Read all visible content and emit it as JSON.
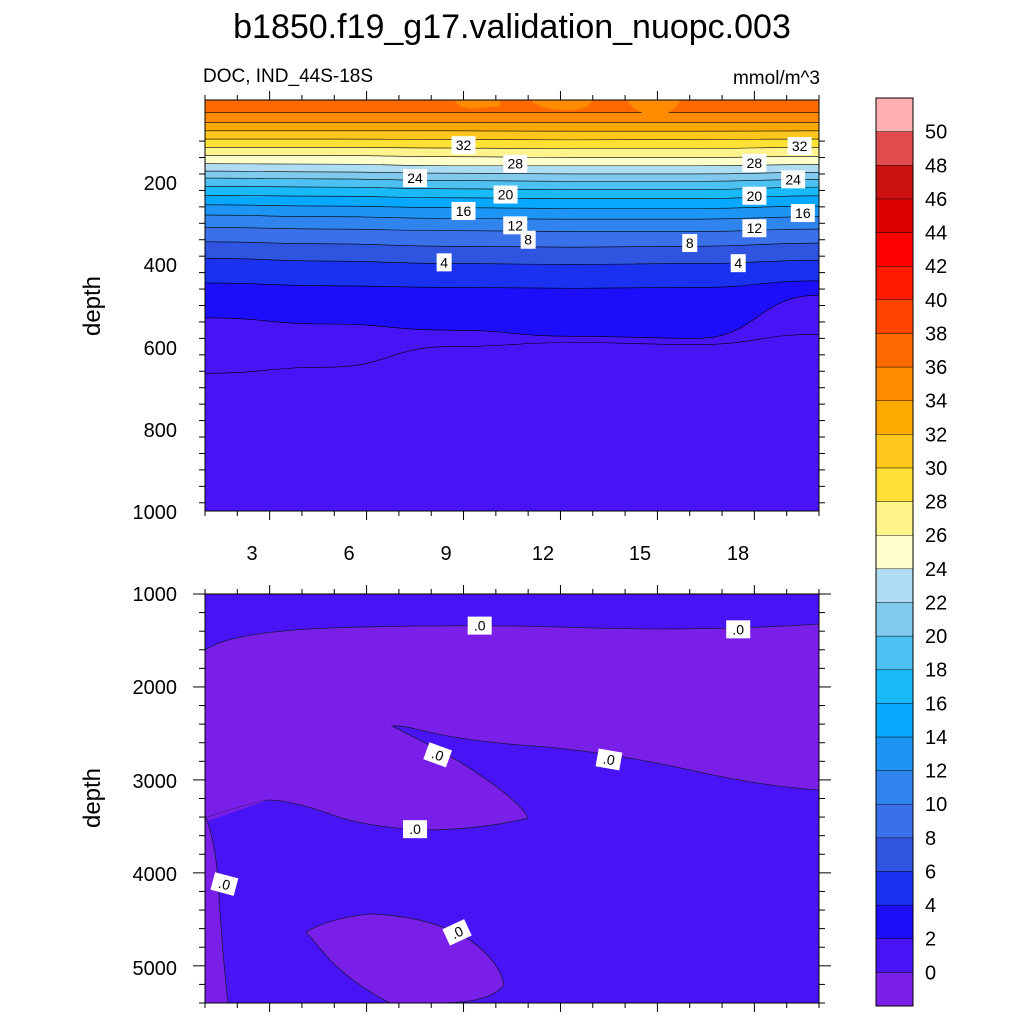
{
  "title": "b1850.f19_g17.validation_nuopc.003",
  "chart_data": [
    {
      "type": "contour",
      "panel": "upper",
      "left_label": "DOC, IND_44S-18S",
      "right_label": "mmol/m^3",
      "xlabel": "",
      "ylabel": "depth",
      "xlim": [
        1,
        20
      ],
      "ylim": [
        0,
        1000
      ],
      "y_reversed": true,
      "x_ticks": [
        3,
        6,
        9,
        12,
        15,
        18
      ],
      "x_tick_labels": [
        "3",
        "6",
        "9",
        "12",
        "15",
        "18"
      ],
      "y_ticks": [
        200,
        400,
        600,
        800,
        1000
      ],
      "y_tick_labels": [
        "200",
        "400",
        "600",
        "800",
        "1000"
      ],
      "contour_lines": [
        {
          "level": 36,
          "depths": [
            30,
            30,
            30,
            30,
            30,
            30
          ]
        },
        {
          "level": 34,
          "depths": [
            55,
            55,
            55,
            55,
            55,
            55
          ]
        },
        {
          "level": 32,
          "depths": [
            75,
            75,
            75,
            76,
            76,
            75
          ]
        },
        {
          "level": 30,
          "depths": [
            95,
            95,
            96,
            97,
            96,
            95
          ]
        },
        {
          "level": 28,
          "depths": [
            115,
            115,
            117,
            118,
            118,
            115
          ]
        },
        {
          "level": 26,
          "depths": [
            135,
            135,
            138,
            140,
            140,
            137
          ]
        },
        {
          "level": 24,
          "depths": [
            155,
            156,
            160,
            160,
            160,
            157
          ]
        },
        {
          "level": 22,
          "depths": [
            173,
            175,
            178,
            180,
            180,
            176
          ]
        },
        {
          "level": 20,
          "depths": [
            190,
            192,
            196,
            198,
            198,
            193
          ]
        },
        {
          "level": 18,
          "depths": [
            210,
            212,
            216,
            218,
            218,
            212
          ]
        },
        {
          "level": 16,
          "depths": [
            232,
            234,
            238,
            240,
            240,
            233
          ]
        },
        {
          "level": 14,
          "depths": [
            255,
            258,
            262,
            264,
            264,
            258
          ]
        },
        {
          "level": 12,
          "depths": [
            280,
            284,
            288,
            290,
            290,
            284
          ]
        },
        {
          "level": 10,
          "depths": [
            310,
            314,
            318,
            320,
            320,
            314
          ]
        },
        {
          "level": 8,
          "depths": [
            345,
            350,
            356,
            358,
            356,
            348
          ]
        },
        {
          "level": 6,
          "depths": [
            385,
            392,
            398,
            400,
            398,
            390
          ]
        },
        {
          "level": 4,
          "depths": [
            445,
            452,
            456,
            458,
            456,
            440
          ]
        },
        {
          "level": 2,
          "depths": [
            530,
            545,
            560,
            575,
            580,
            475
          ]
        },
        {
          "level": 0,
          "depths": [
            665,
            650,
            600,
            590,
            595,
            570
          ]
        }
      ],
      "line_labels": [
        {
          "text": "32",
          "x": 9.0,
          "y": 110
        },
        {
          "text": "28",
          "x": 10.6,
          "y": 155
        },
        {
          "text": "24",
          "x": 7.5,
          "y": 190
        },
        {
          "text": "20",
          "x": 10.3,
          "y": 230
        },
        {
          "text": "16",
          "x": 9.0,
          "y": 270
        },
        {
          "text": "12",
          "x": 10.6,
          "y": 305
        },
        {
          "text": "8",
          "x": 11.0,
          "y": 340
        },
        {
          "text": "4",
          "x": 8.4,
          "y": 395
        },
        {
          "text": "32",
          "x": 19.4,
          "y": 112
        },
        {
          "text": "28",
          "x": 18.0,
          "y": 153
        },
        {
          "text": "24",
          "x": 19.2,
          "y": 193
        },
        {
          "text": "20",
          "x": 18.0,
          "y": 233
        },
        {
          "text": "16",
          "x": 19.5,
          "y": 275
        },
        {
          "text": "12",
          "x": 18.0,
          "y": 312
        },
        {
          "text": "8",
          "x": 16.0,
          "y": 348
        },
        {
          "text": "4",
          "x": 17.5,
          "y": 397
        }
      ]
    },
    {
      "type": "contour",
      "panel": "lower",
      "xlabel": "",
      "ylabel": "depth",
      "xlim": [
        1,
        20
      ],
      "ylim": [
        1000,
        5400
      ],
      "y_reversed": true,
      "y_ticks": [
        1000,
        2000,
        3000,
        4000,
        5000
      ],
      "y_tick_labels": [
        "1000",
        "2000",
        "3000",
        "4000",
        "5000"
      ],
      "regions": [
        {
          "level_range": [
            -2,
            0
          ],
          "note": "mid-depth region between ~1400 m and ~3300 m"
        },
        {
          "level_range": [
            -2,
            0
          ],
          "note": "shallow patch near x 7-11 at ~2500-3500 m"
        },
        {
          "level_range": [
            -2,
            0
          ],
          "note": "deep patch near x 4.4-10 at ~4500-5300 m"
        }
      ],
      "line_labels": [
        {
          "text": ".0",
          "x": 9.5,
          "y": 1340
        },
        {
          "text": ".0",
          "x": 17.5,
          "y": 1380
        },
        {
          "text": ".0",
          "x": 8.2,
          "y": 2730
        },
        {
          "text": ".0",
          "x": 13.5,
          "y": 2780
        },
        {
          "text": ".0",
          "x": 7.5,
          "y": 3530
        },
        {
          "text": ".0",
          "x": 1.6,
          "y": 4120
        },
        {
          "text": ".0",
          "x": 8.8,
          "y": 4640
        }
      ]
    }
  ],
  "colorbar": {
    "labels": [
      "0",
      "2",
      "4",
      "6",
      "8",
      "10",
      "12",
      "14",
      "16",
      "18",
      "20",
      "22",
      "24",
      "26",
      "28",
      "30",
      "32",
      "34",
      "36",
      "38",
      "40",
      "42",
      "44",
      "46",
      "48",
      "50"
    ],
    "colors": [
      "#7a1fe8",
      "#4914f5",
      "#1c0dfa",
      "#1a32f0",
      "#2f55e0",
      "#3a70ea",
      "#2f84ee",
      "#1d95f5",
      "#06a9ff",
      "#1ab9f7",
      "#4cc1f2",
      "#82c9ee",
      "#aedcf2",
      "#ffffcc",
      "#fff38b",
      "#ffe135",
      "#ffc61b",
      "#ffaa00",
      "#ff8c00",
      "#ff6a00",
      "#ff4500",
      "#ff1a00",
      "#ff0000",
      "#dd0000",
      "#cc1111",
      "#e04b4b",
      "#ffb0b0"
    ]
  }
}
